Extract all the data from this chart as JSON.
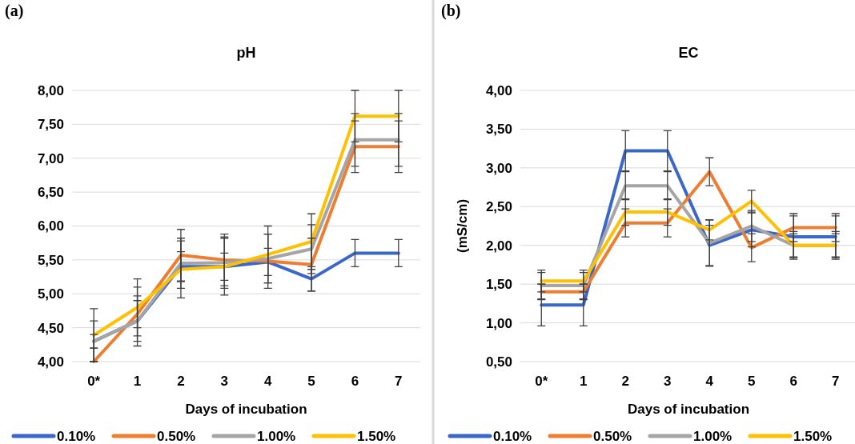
{
  "chart_data": [
    {
      "type": "line",
      "title": "pH",
      "xlabel": "Days of incubation",
      "annotations": [
        "(a)"
      ],
      "categories": [
        "0*",
        "1",
        "2",
        "3",
        "4",
        "5",
        "6",
        "7"
      ],
      "ylim": [
        4,
        8
      ],
      "yticks": [
        {
          "value": 4,
          "label": "4,00"
        },
        {
          "value": 4.5,
          "label": "4,50"
        },
        {
          "value": 5,
          "label": "5,00"
        },
        {
          "value": 5.5,
          "label": "5,50"
        },
        {
          "value": 6,
          "label": "6,00"
        },
        {
          "value": 6.5,
          "label": "6,50"
        },
        {
          "value": 7,
          "label": "7,00"
        },
        {
          "value": 7.5,
          "label": "7,50"
        },
        {
          "value": 8,
          "label": "8,00"
        }
      ],
      "grid": "y",
      "legend": "bottom",
      "marker": "none",
      "line_style": "solid",
      "series": [
        {
          "name": "0.10%",
          "color": "#3a67c9",
          "values": [
            4.3,
            4.6,
            5.4,
            5.4,
            5.47,
            5.22,
            5.6,
            5.6
          ],
          "errors": [
            0.1,
            [
              4.5,
              4.9
            ],
            0.22,
            0.2,
            0.2,
            0.18,
            0.2,
            0.2
          ]
        },
        {
          "name": "0.50%",
          "color": "#ed7d31",
          "values": [
            4.0,
            4.7,
            5.57,
            5.5,
            5.48,
            5.43,
            7.17,
            7.17
          ],
          "errors": [
            [
              4.0,
              4.2
            ],
            0.4,
            0.38,
            0.38,
            0.4,
            0.39,
            0.38,
            0.38
          ]
        },
        {
          "name": "1.00%",
          "color": "#a5a5a5",
          "values": [
            4.3,
            4.6,
            5.45,
            5.46,
            5.52,
            5.66,
            7.27,
            7.27
          ],
          "errors": [
            0.3,
            0.37,
            0.37,
            0.38,
            0.36,
            0.36,
            0.39,
            0.39
          ]
        },
        {
          "name": "1.50%",
          "color": "#ffc000",
          "values": [
            4.39,
            4.8,
            5.36,
            5.4,
            5.58,
            5.77,
            7.62,
            7.62
          ],
          "errors": [
            0.39,
            0.42,
            0.42,
            0.42,
            0.42,
            0.41,
            0.38,
            0.38
          ]
        }
      ]
    },
    {
      "type": "line",
      "title": "EC",
      "xlabel": "Days of incubation",
      "ylabel": "(mS/cm)",
      "annotations": [
        "(b)"
      ],
      "categories": [
        "0*",
        "1",
        "2",
        "3",
        "4",
        "5",
        "6",
        "7"
      ],
      "ylim": [
        0.5,
        4
      ],
      "yticks": [
        {
          "value": 0.5,
          "label": "0,50"
        },
        {
          "value": 1,
          "label": "1,00"
        },
        {
          "value": 1.5,
          "label": "1,50"
        },
        {
          "value": 2,
          "label": "2,00"
        },
        {
          "value": 2.5,
          "label": "2,50"
        },
        {
          "value": 3,
          "label": "3,00"
        },
        {
          "value": 3.5,
          "label": "3,50"
        },
        {
          "value": 4,
          "label": "4,00"
        }
      ],
      "grid": "y",
      "legend": "bottom",
      "marker": "none",
      "line_style": "solid",
      "series": [
        {
          "name": "0.10%",
          "color": "#3a67c9",
          "values": [
            1.23,
            1.23,
            3.22,
            3.22,
            2.0,
            2.2,
            2.11,
            2.11
          ],
          "errors": [
            0.27,
            0.27,
            0.26,
            0.26,
            0.26,
            0.22,
            0.27,
            0.27
          ]
        },
        {
          "name": "0.50%",
          "color": "#ed7d31",
          "values": [
            1.4,
            1.4,
            2.29,
            2.29,
            2.95,
            1.97,
            2.23,
            2.23
          ],
          "errors": [
            0.1,
            0.1,
            0.18,
            0.18,
            0.18,
            0.18,
            0.18,
            0.18
          ]
        },
        {
          "name": "1.00%",
          "color": "#a5a5a5",
          "values": [
            1.48,
            1.48,
            2.77,
            2.77,
            2.03,
            2.25,
            2.0,
            2.0
          ],
          "errors": [
            0.17,
            0.17,
            0.18,
            0.18,
            0.3,
            0.2,
            0.15,
            0.15
          ]
        },
        {
          "name": "1.50%",
          "color": "#ffc000",
          "values": [
            1.54,
            1.54,
            2.43,
            2.43,
            2.2,
            2.57,
            2.0,
            2.0
          ],
          "errors": [
            0.14,
            0.14,
            0.17,
            0.17,
            0.13,
            0.14,
            0.18,
            0.18
          ]
        }
      ]
    }
  ]
}
